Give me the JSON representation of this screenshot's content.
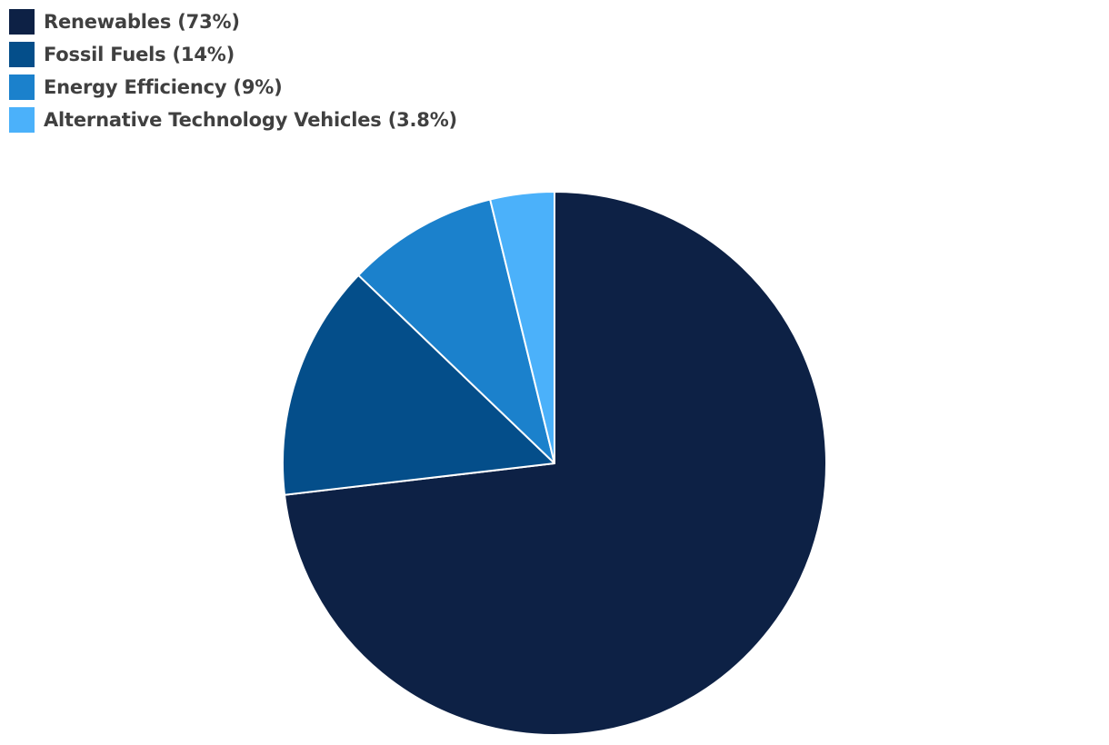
{
  "chart_data": {
    "type": "pie",
    "title": "",
    "legend_position": "top-left",
    "slices": [
      {
        "label": "Renewables",
        "legend_label": "Renewables (73%)",
        "value": 73,
        "color": "#0d2145"
      },
      {
        "label": "Fossil Fuels",
        "legend_label": "Fossil Fuels (14%)",
        "value": 14,
        "color": "#044e8a"
      },
      {
        "label": "Energy Efficiency",
        "legend_label": "Energy Efficiency (9%)",
        "value": 9,
        "color": "#1b81cc"
      },
      {
        "label": "Alternative Technology Vehicles",
        "legend_label": "Alternative Technology Vehicles (3.8%)",
        "value": 3.8,
        "color": "#4bb1fa"
      }
    ]
  }
}
